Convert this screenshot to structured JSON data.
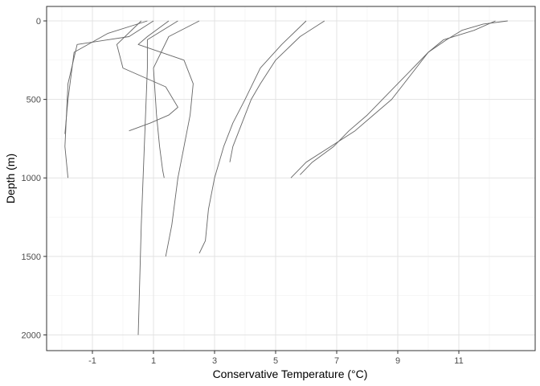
{
  "chart_data": {
    "type": "line",
    "title": "",
    "xlabel": "Conservative Temperature (°C)",
    "ylabel": "Depth (m)",
    "xlim": [
      -2.5,
      13.5
    ],
    "ylim": [
      0,
      2100
    ],
    "y_reversed": true,
    "x_ticks": [
      -1,
      1,
      3,
      5,
      7,
      9,
      11
    ],
    "x_tick_labels": [
      "-1",
      "1",
      "3",
      "5",
      "7",
      "9",
      "11"
    ],
    "y_ticks": [
      0,
      500,
      1000,
      1500,
      2000
    ],
    "y_tick_labels": [
      "0",
      "500",
      "1000",
      "1500",
      "2000"
    ],
    "grid": true,
    "legend": "none",
    "line_color": "#666666",
    "series": [
      {
        "x": [
          12.6,
          11.8,
          11.1,
          10.6,
          10.0,
          9.5,
          9.0,
          8.5,
          8.0,
          7.4,
          6.9,
          6.2,
          5.8
        ],
        "depth": [
          0,
          20,
          60,
          120,
          200,
          300,
          400,
          500,
          600,
          700,
          800,
          900,
          980
        ]
      },
      {
        "x": [
          12.2,
          11.5,
          10.5,
          10.0,
          9.6,
          9.2,
          8.8,
          8.2,
          7.6,
          6.8,
          6.0,
          5.5
        ],
        "depth": [
          0,
          60,
          120,
          200,
          300,
          400,
          500,
          600,
          700,
          800,
          900,
          1000
        ]
      },
      {
        "x": [
          6.6,
          5.8,
          5.0,
          4.5,
          4.2,
          4.0,
          3.8,
          3.6,
          3.5
        ],
        "depth": [
          0,
          100,
          250,
          400,
          500,
          600,
          700,
          800,
          900
        ]
      },
      {
        "x": [
          6.0,
          5.2,
          4.5,
          4.0,
          3.6,
          3.3,
          3.0,
          2.8,
          2.7,
          2.5
        ],
        "depth": [
          0,
          150,
          300,
          500,
          650,
          800,
          1000,
          1200,
          1400,
          1480
        ]
      },
      {
        "x": [
          1.5,
          0.8,
          0.5,
          2.0,
          2.3,
          2.2,
          2.0,
          1.8,
          1.6,
          1.4
        ],
        "depth": [
          0,
          100,
          150,
          250,
          400,
          600,
          800,
          1000,
          1300,
          1500
        ]
      },
      {
        "x": [
          1.0,
          0.2,
          -1.5,
          -1.8,
          -1.9,
          -1.8
        ],
        "depth": [
          0,
          100,
          150,
          400,
          800,
          1000
        ]
      },
      {
        "x": [
          0.8,
          -0.5,
          -1.6,
          -1.8,
          -1.9
        ],
        "depth": [
          0,
          80,
          200,
          500,
          720
        ]
      },
      {
        "x": [
          2.5,
          1.5,
          1.0,
          1.1,
          1.2,
          1.3,
          1.35
        ],
        "depth": [
          0,
          100,
          300,
          600,
          800,
          950,
          1000
        ]
      },
      {
        "x": [
          1.8,
          0.8,
          0.8,
          0.7,
          0.6,
          0.5
        ],
        "depth": [
          0,
          120,
          300,
          800,
          1300,
          2000
        ]
      },
      {
        "x": [
          0.6,
          -0.2,
          0.0,
          1.4,
          1.8,
          1.5,
          0.9,
          0.2
        ],
        "depth": [
          0,
          150,
          300,
          420,
          550,
          600,
          650,
          700
        ]
      }
    ]
  }
}
